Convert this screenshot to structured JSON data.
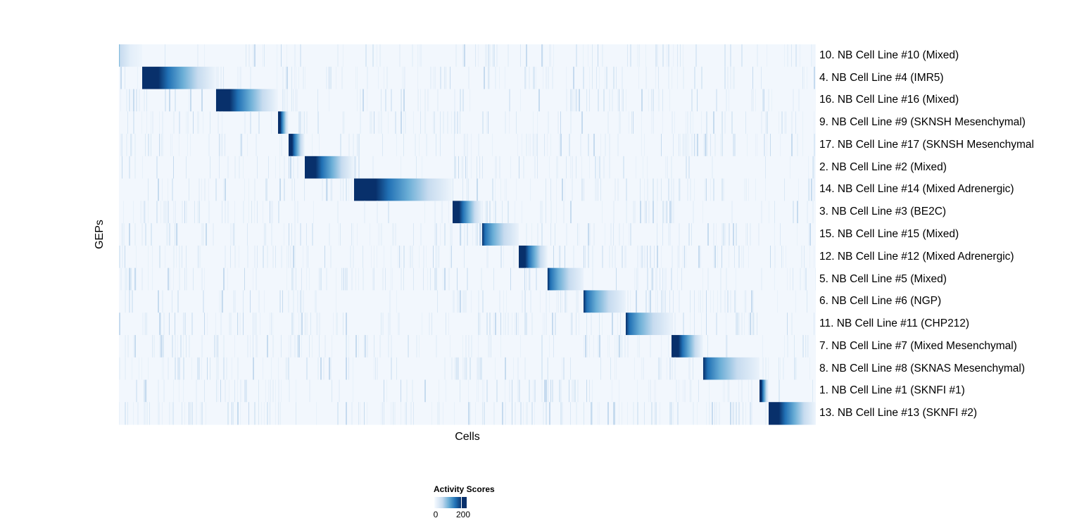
{
  "chart_data": {
    "type": "heatmap",
    "xlabel": "Cells",
    "ylabel": "GEPs",
    "rows": [
      {
        "label": "10. NB Cell Line #10 (Mixed)",
        "cells": 33,
        "peak": 0.25
      },
      {
        "label": "4. NB Cell Line #4 (IMR5)",
        "cells": 105,
        "peak": 1.0
      },
      {
        "label": "16. NB Cell Line #16 (Mixed)",
        "cells": 88,
        "peak": 1.0
      },
      {
        "label": "9. NB Cell Line #9 (SKNSH Mesenchymal)",
        "cells": 15,
        "peak": 1.0
      },
      {
        "label": "17. NB Cell Line #17 (SKNSH Mesenchymal",
        "cells": 23,
        "peak": 1.0
      },
      {
        "label": "2. NB Cell Line #2 (Mixed)",
        "cells": 70,
        "peak": 1.0
      },
      {
        "label": "14. NB Cell Line #14 (Mixed Adrenergic)",
        "cells": 140,
        "peak": 1.0
      },
      {
        "label": "3. NB Cell Line #3 (BE2C)",
        "cells": 42,
        "peak": 1.0
      },
      {
        "label": "15. NB Cell Line #15 (Mixed)",
        "cells": 52,
        "peak": 0.9
      },
      {
        "label": "12. NB Cell Line #12 (Mixed Adrenergic)",
        "cells": 41,
        "peak": 1.0
      },
      {
        "label": "5. NB Cell Line #5 (Mixed)",
        "cells": 51,
        "peak": 0.95
      },
      {
        "label": "6. NB Cell Line #6 (NGP)",
        "cells": 60,
        "peak": 0.9
      },
      {
        "label": "11. NB Cell Line #11 (CHP212)",
        "cells": 65,
        "peak": 0.85
      },
      {
        "label": "7. NB Cell Line #7 (Mixed Mesenchymal)",
        "cells": 45,
        "peak": 1.0
      },
      {
        "label": "8. NB Cell Line #8 (SKNAS Mesenchymal)",
        "cells": 80,
        "peak": 0.9
      },
      {
        "label": "1. NB Cell Line #1 (SKNFI #1)",
        "cells": 13,
        "peak": 1.0
      },
      {
        "label": "13. NB Cell Line #13 (SKNFI #2)",
        "cells": 67,
        "peak": 1.0
      }
    ],
    "legend": {
      "title": "Activity Scores",
      "ticks": [
        "0",
        "200"
      ],
      "range": [
        0,
        230
      ],
      "placement": "bottom"
    },
    "colors": {
      "low": "#f7fbff",
      "mid": "#6baed6",
      "high": "#08306b"
    }
  }
}
